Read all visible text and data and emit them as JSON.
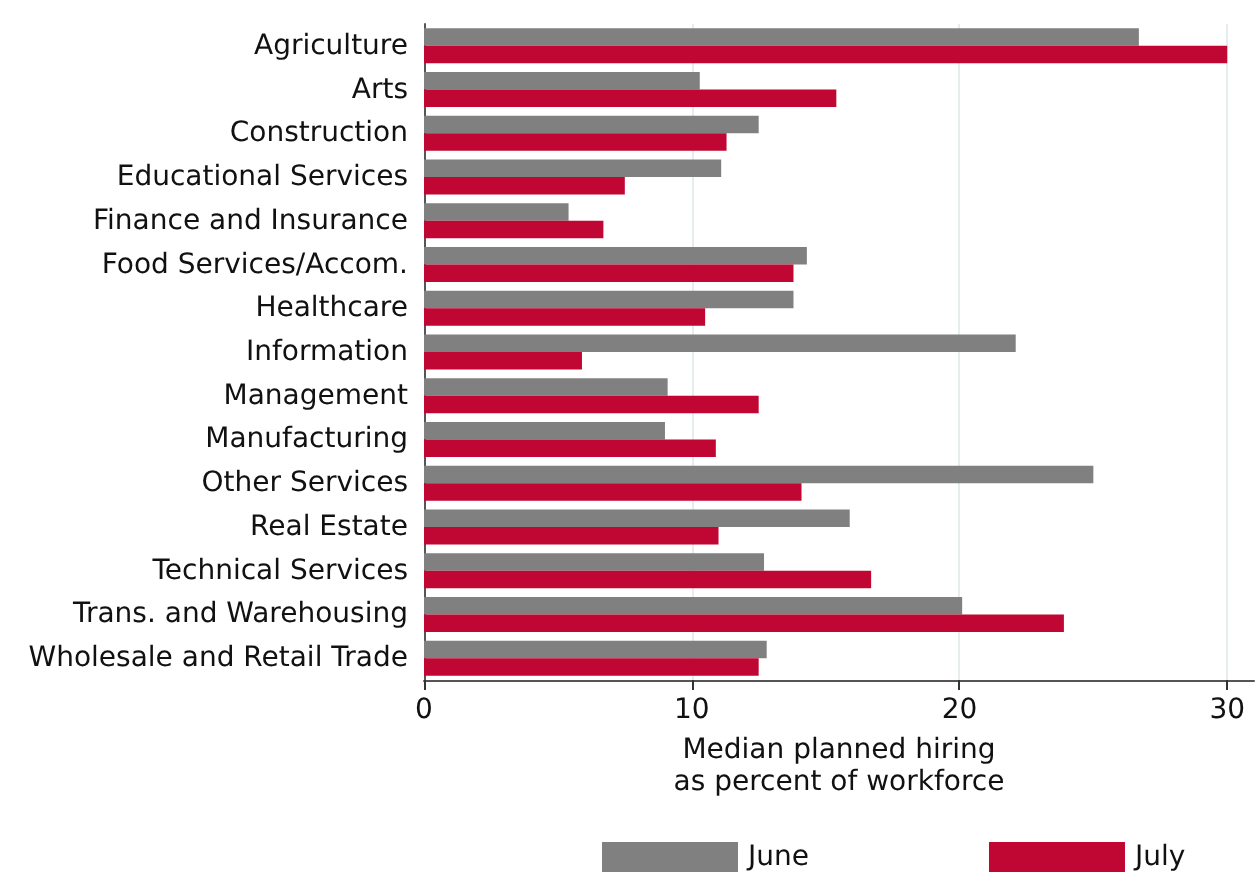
{
  "chart_data": {
    "type": "bar",
    "orientation": "horizontal",
    "xlabel": "Median planned hiring\nas percent of workforce",
    "categories": [
      "Agriculture",
      "Arts",
      "Construction",
      "Educational Services",
      "Finance and Insurance",
      "Food Services/Accom.",
      "Healthcare",
      "Information",
      "Management",
      "Manufacturing",
      "Other Services",
      "Real Estate",
      "Technical Services",
      "Trans. and Warehousing",
      "Wholesale and Retail Trade"
    ],
    "series": [
      {
        "name": "June",
        "color": "#808080",
        "values": [
          26.7,
          10.3,
          12.5,
          11.1,
          5.4,
          14.3,
          13.8,
          22.1,
          9.1,
          9.0,
          25.0,
          15.9,
          12.7,
          20.1,
          12.8
        ]
      },
      {
        "name": "July",
        "color": "#c00633",
        "values": [
          30.0,
          15.4,
          11.3,
          7.5,
          6.7,
          13.8,
          10.5,
          5.9,
          12.5,
          10.9,
          14.1,
          11.0,
          16.7,
          23.9,
          12.5
        ]
      }
    ],
    "xlim": [
      0,
      31
    ],
    "xticks": [
      0,
      10,
      20,
      30
    ],
    "grid": "x",
    "legend": "bottom"
  }
}
